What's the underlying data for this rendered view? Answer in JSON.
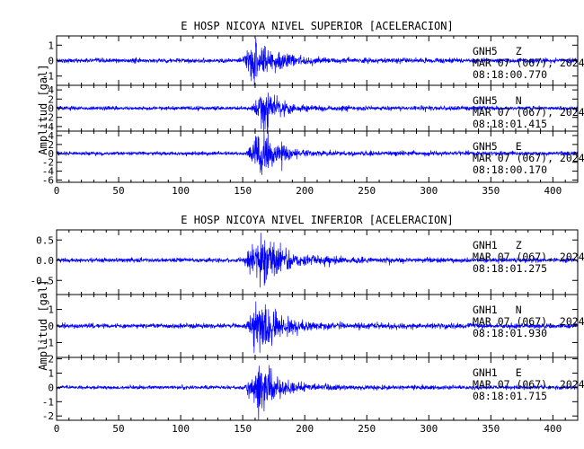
{
  "chart_data": [
    {
      "type": "line",
      "title": "E HOSP NICOYA NIVEL SUPERIOR [ACELERACION]",
      "ylabel": "Amplitud [gal]",
      "xlabel": "",
      "xlim": [
        0,
        420
      ],
      "x_ticks": [
        0,
        50,
        100,
        150,
        200,
        250,
        300,
        350,
        400
      ],
      "traces": [
        {
          "station": "GNH5",
          "component": "Z",
          "date": "MAR 07 (067), 2024",
          "time": "08:18:00.770",
          "ylim": [
            -1.6,
            1.6
          ],
          "y_ticks": [
            -1,
            0,
            1
          ],
          "noise": 0.07,
          "peak": 1.5,
          "onset": 150,
          "peak_time": 158,
          "decay": 16
        },
        {
          "station": "GNH5",
          "component": "N",
          "date": "MAR 07 (067), 2024",
          "time": "08:18:01.415",
          "ylim": [
            -5,
            5
          ],
          "y_ticks": [
            -4,
            -2,
            0,
            2,
            4
          ],
          "noise": 0.2,
          "peak": 4.8,
          "onset": 157,
          "peak_time": 166,
          "decay": 12
        },
        {
          "station": "GNH5",
          "component": "E",
          "date": "MAR 07 (067), 2024",
          "time": "08:18:00.170",
          "ylim": [
            -6.5,
            5
          ],
          "y_ticks": [
            -6,
            -4,
            -2,
            0,
            2,
            4
          ],
          "noise": 0.2,
          "peak": 5.5,
          "onset": 152,
          "peak_time": 166,
          "decay": 12
        }
      ],
      "line_color": "#0000ff"
    },
    {
      "type": "line",
      "title": "E HOSP NICOYA NIVEL INFERIOR [ACELERACION]",
      "ylabel": "Amplitud [gal]",
      "xlabel": "",
      "xlim": [
        0,
        420
      ],
      "x_ticks": [
        0,
        50,
        100,
        150,
        200,
        250,
        300,
        350,
        400
      ],
      "traces": [
        {
          "station": "GNH1",
          "component": "Z",
          "date": "MAR 07 (067), 2024",
          "time": "08:18:01.275",
          "ylim": [
            -0.85,
            0.75
          ],
          "y_ticks": [
            -0.5,
            0.0,
            0.5
          ],
          "y_decimals": 1,
          "noise": 0.025,
          "peak": 0.7,
          "onset": 150,
          "peak_time": 163,
          "decay": 18
        },
        {
          "station": "GNH1",
          "component": "N",
          "date": "MAR 07 (067), 2024",
          "time": "08:18:01.930",
          "ylim": [
            -1.9,
            1.9
          ],
          "y_ticks": [
            -1,
            0,
            1
          ],
          "noise": 0.07,
          "peak": 1.8,
          "onset": 152,
          "peak_time": 164,
          "decay": 14
        },
        {
          "station": "GNH1",
          "component": "E",
          "date": "MAR 07 (067), 2024",
          "time": "08:18:01.715",
          "ylim": [
            -2.3,
            2.1
          ],
          "y_ticks": [
            -2,
            -1,
            0,
            1,
            2
          ],
          "noise": 0.06,
          "peak": 2.0,
          "onset": 152,
          "peak_time": 166,
          "decay": 12
        }
      ],
      "line_color": "#0000ff"
    }
  ]
}
